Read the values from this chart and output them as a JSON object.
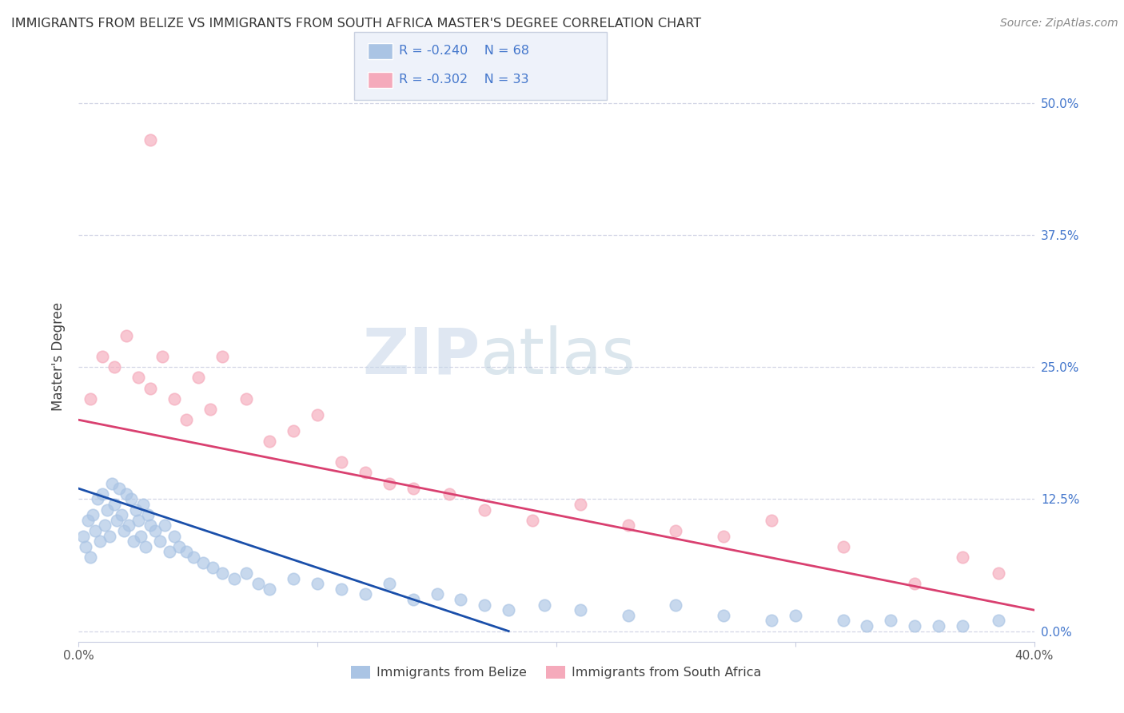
{
  "title": "IMMIGRANTS FROM BELIZE VS IMMIGRANTS FROM SOUTH AFRICA MASTER'S DEGREE CORRELATION CHART",
  "source": "Source: ZipAtlas.com",
  "ylabel": "Master's Degree",
  "ytick_vals": [
    0.0,
    12.5,
    25.0,
    37.5,
    50.0
  ],
  "xlim": [
    0.0,
    40.0
  ],
  "ylim": [
    -1.0,
    53.0
  ],
  "r_belize": -0.24,
  "n_belize": 68,
  "r_sa": -0.302,
  "n_sa": 33,
  "belize_color": "#aac4e4",
  "sa_color": "#f5aabb",
  "belize_line_color": "#1a4faa",
  "sa_line_color": "#d94070",
  "belize_scatter_x": [
    0.2,
    0.3,
    0.4,
    0.5,
    0.6,
    0.7,
    0.8,
    0.9,
    1.0,
    1.1,
    1.2,
    1.3,
    1.4,
    1.5,
    1.6,
    1.7,
    1.8,
    1.9,
    2.0,
    2.1,
    2.2,
    2.3,
    2.4,
    2.5,
    2.6,
    2.7,
    2.8,
    2.9,
    3.0,
    3.2,
    3.4,
    3.6,
    3.8,
    4.0,
    4.2,
    4.5,
    4.8,
    5.2,
    5.6,
    6.0,
    6.5,
    7.0,
    7.5,
    8.0,
    9.0,
    10.0,
    11.0,
    12.0,
    13.0,
    14.0,
    15.0,
    16.0,
    17.0,
    18.0,
    19.5,
    21.0,
    23.0,
    25.0,
    27.0,
    29.0,
    30.0,
    32.0,
    33.0,
    34.0,
    35.0,
    36.0,
    37.0,
    38.5
  ],
  "belize_scatter_y": [
    9.0,
    8.0,
    10.5,
    7.0,
    11.0,
    9.5,
    12.5,
    8.5,
    13.0,
    10.0,
    11.5,
    9.0,
    14.0,
    12.0,
    10.5,
    13.5,
    11.0,
    9.5,
    13.0,
    10.0,
    12.5,
    8.5,
    11.5,
    10.5,
    9.0,
    12.0,
    8.0,
    11.0,
    10.0,
    9.5,
    8.5,
    10.0,
    7.5,
    9.0,
    8.0,
    7.5,
    7.0,
    6.5,
    6.0,
    5.5,
    5.0,
    5.5,
    4.5,
    4.0,
    5.0,
    4.5,
    4.0,
    3.5,
    4.5,
    3.0,
    3.5,
    3.0,
    2.5,
    2.0,
    2.5,
    2.0,
    1.5,
    2.5,
    1.5,
    1.0,
    1.5,
    1.0,
    0.5,
    1.0,
    0.5,
    0.5,
    0.5,
    1.0
  ],
  "sa_scatter_x": [
    0.5,
    1.0,
    1.5,
    2.0,
    2.5,
    3.0,
    3.5,
    4.0,
    4.5,
    5.0,
    5.5,
    6.0,
    7.0,
    8.0,
    9.0,
    10.0,
    11.0,
    12.0,
    13.0,
    14.0,
    15.5,
    17.0,
    19.0,
    21.0,
    23.0,
    25.0,
    27.0,
    29.0,
    32.0,
    35.0,
    37.0,
    38.5,
    3.0
  ],
  "sa_scatter_y": [
    22.0,
    26.0,
    25.0,
    28.0,
    24.0,
    23.0,
    26.0,
    22.0,
    20.0,
    24.0,
    21.0,
    26.0,
    22.0,
    18.0,
    19.0,
    20.5,
    16.0,
    15.0,
    14.0,
    13.5,
    13.0,
    11.5,
    10.5,
    12.0,
    10.0,
    9.5,
    9.0,
    10.5,
    8.0,
    4.5,
    7.0,
    5.5,
    46.5
  ],
  "belize_trend_x": [
    0,
    18
  ],
  "belize_trend_y": [
    13.5,
    0.0
  ],
  "sa_trend_x": [
    0,
    40
  ],
  "sa_trend_y": [
    20.0,
    2.0
  ],
  "legend_box_color": "#eef2fa",
  "legend_border_color": "#c8d0e0",
  "watermark_zip": "ZIP",
  "watermark_atlas": "atlas",
  "text_color": "#4477cc"
}
